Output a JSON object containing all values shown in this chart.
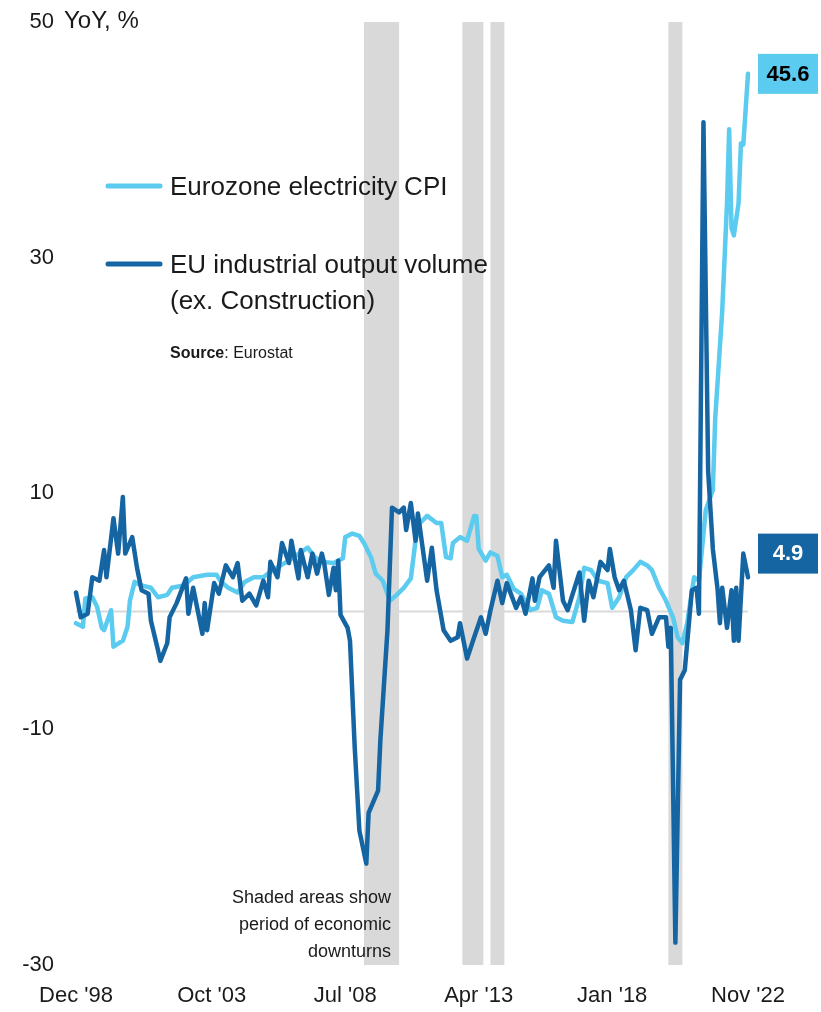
{
  "chart_data": {
    "type": "line",
    "ylabel": "YoY, %",
    "ylim": [
      -30,
      50
    ],
    "yticks": [
      -30,
      -10,
      10,
      30,
      50
    ],
    "xlim": [
      "1998-12",
      "2022-11"
    ],
    "xticks": [
      {
        "value": "1998-12",
        "label": "Dec '98"
      },
      {
        "value": "2003-10",
        "label": "Oct '03"
      },
      {
        "value": "2008-07",
        "label": "Jul '08"
      },
      {
        "value": "2013-04",
        "label": "Apr '13"
      },
      {
        "value": "2018-01",
        "label": "Jan '18"
      },
      {
        "value": "2022-11",
        "label": "Nov '22"
      }
    ],
    "grid": false,
    "legend": "top left",
    "line_style": "solid",
    "marker": "none",
    "series": [
      {
        "name": "Eurozone electricity CPI",
        "color": "#5bcbef",
        "x": [
          "1998-12",
          "1999-03",
          "1999-04",
          "1999-07",
          "1999-09",
          "1999-11",
          "1999-12",
          "2000-03",
          "2000-04",
          "2000-07",
          "2000-08",
          "2000-10",
          "2000-11",
          "2001-01",
          "2001-04",
          "2001-08",
          "2001-11",
          "2002-03",
          "2002-05",
          "2002-10",
          "2003-02",
          "2003-08",
          "2003-12",
          "2004-02",
          "2004-05",
          "2004-09",
          "2004-12",
          "2005-04",
          "2005-08",
          "2005-12",
          "2006-06",
          "2006-12",
          "2007-03",
          "2007-06",
          "2007-09",
          "2008-02",
          "2008-06",
          "2008-07",
          "2008-10",
          "2009-01",
          "2009-03",
          "2009-06",
          "2009-08",
          "2009-11",
          "2010-02",
          "2010-05",
          "2010-08",
          "2010-11",
          "2011-01",
          "2011-03",
          "2011-06",
          "2011-10",
          "2011-12",
          "2012-02",
          "2012-04",
          "2012-05",
          "2012-08",
          "2012-11",
          "2013-02",
          "2013-03",
          "2013-04",
          "2013-07",
          "2013-09",
          "2013-12",
          "2014-02",
          "2014-04",
          "2014-07",
          "2014-10",
          "2015-02",
          "2015-05",
          "2015-07",
          "2015-10",
          "2016-01",
          "2016-04",
          "2016-08",
          "2016-11",
          "2017-01",
          "2017-04",
          "2017-07",
          "2017-11",
          "2018-01",
          "2018-04",
          "2018-07",
          "2018-10",
          "2019-01",
          "2019-04",
          "2019-06",
          "2019-09",
          "2019-12",
          "2020-03",
          "2020-05",
          "2020-07",
          "2020-09",
          "2020-12",
          "2021-02",
          "2021-05",
          "2021-08",
          "2021-09",
          "2021-12",
          "2022-02",
          "2022-03",
          "2022-04",
          "2022-05",
          "2022-07",
          "2022-08",
          "2022-09",
          "2022-11"
        ],
        "values": [
          -1.0,
          -1.3,
          1.1,
          1.2,
          0.4,
          -1.4,
          -1.6,
          0.1,
          -3.0,
          -2.6,
          -2.5,
          -1.3,
          0.9,
          2.5,
          2.2,
          2.0,
          1.2,
          1.4,
          2.0,
          2.2,
          2.9,
          3.1,
          3.1,
          2.5,
          2.0,
          1.6,
          2.5,
          2.9,
          2.9,
          3.5,
          4.2,
          5.0,
          5.4,
          4.6,
          4.2,
          4.1,
          4.5,
          6.3,
          6.6,
          6.4,
          5.8,
          4.6,
          3.2,
          2.6,
          0.9,
          1.4,
          2.0,
          2.8,
          6.0,
          7.5,
          8.1,
          7.5,
          7.5,
          4.6,
          4.5,
          5.8,
          6.3,
          6.0,
          8.1,
          8.1,
          5.3,
          4.3,
          5.0,
          4.7,
          2.9,
          3.1,
          1.9,
          1.5,
          0.1,
          0.3,
          1.8,
          1.5,
          -0.5,
          -0.8,
          -0.9,
          1.2,
          3.7,
          3.5,
          2.6,
          2.4,
          0.3,
          1.2,
          2.9,
          3.5,
          4.2,
          3.9,
          3.5,
          2.0,
          0.9,
          -0.5,
          -2.2,
          -2.7,
          -1.0,
          2.9,
          2.6,
          8.6,
          10.3,
          16.4,
          25.5,
          34.6,
          40.9,
          32.5,
          31.9,
          34.6,
          39.7,
          39.6,
          45.6
        ]
      },
      {
        "name": "EU industrial output volume (ex. Construction)",
        "color": "#1565a3",
        "x": [
          "1998-12",
          "1999-02",
          "1999-05",
          "1999-07",
          "1999-10",
          "1999-12",
          "2000-01",
          "2000-04",
          "2000-06",
          "2000-08",
          "2000-09",
          "2000-12",
          "2001-02",
          "2001-04",
          "2001-07",
          "2001-08",
          "2001-11",
          "2001-12",
          "2002-03",
          "2002-04",
          "2002-07",
          "2002-11",
          "2002-12",
          "2003-02",
          "2003-06",
          "2003-07",
          "2003-08",
          "2003-11",
          "2004-01",
          "2004-04",
          "2004-07",
          "2004-09",
          "2004-11",
          "2005-02",
          "2005-05",
          "2005-08",
          "2005-10",
          "2005-11",
          "2006-02",
          "2006-04",
          "2006-07",
          "2006-08",
          "2006-11",
          "2006-12",
          "2007-03",
          "2007-05",
          "2007-07",
          "2007-09",
          "2007-10",
          "2007-12",
          "2008-02",
          "2008-03",
          "2008-04",
          "2008-05",
          "2008-08",
          "2008-09",
          "2008-11",
          "2009-01",
          "2009-04",
          "2009-05",
          "2009-09",
          "2009-10",
          "2010-01",
          "2010-03",
          "2010-06",
          "2010-08",
          "2010-09",
          "2010-11",
          "2011-01",
          "2011-02",
          "2011-06",
          "2011-08",
          "2011-10",
          "2012-01",
          "2012-04",
          "2012-07",
          "2012-08",
          "2012-11",
          "2013-02",
          "2013-05",
          "2013-07",
          "2013-09",
          "2013-12",
          "2014-02",
          "2014-04",
          "2014-08",
          "2014-10",
          "2014-12",
          "2015-03",
          "2015-04",
          "2015-06",
          "2015-10",
          "2015-12",
          "2016-01",
          "2016-04",
          "2016-06",
          "2016-08",
          "2016-11",
          "2017-01",
          "2017-03",
          "2017-05",
          "2017-08",
          "2017-11",
          "2017-12",
          "2018-02",
          "2018-04",
          "2018-06",
          "2018-09",
          "2018-11",
          "2019-01",
          "2019-04",
          "2019-06",
          "2019-09",
          "2019-12",
          "2020-01",
          "2020-02",
          "2020-04",
          "2020-06",
          "2020-08",
          "2020-11",
          "2021-01",
          "2021-02",
          "2021-04",
          "2021-06",
          "2021-08",
          "2021-10",
          "2021-11",
          "2021-12",
          "2022-02",
          "2022-04",
          "2022-05",
          "2022-06",
          "2022-07",
          "2022-09",
          "2022-11"
        ],
        "values": [
          1.6,
          -0.5,
          -0.2,
          2.9,
          2.6,
          5.2,
          2.9,
          7.9,
          4.9,
          9.7,
          4.9,
          6.3,
          3.7,
          1.8,
          1.5,
          -0.8,
          -3.3,
          -4.2,
          -2.7,
          -0.5,
          0.7,
          2.8,
          -0.2,
          2.0,
          -1.9,
          0.7,
          -1.6,
          2.4,
          1.5,
          3.9,
          2.9,
          4.1,
          0.9,
          1.5,
          0.5,
          2.6,
          1.2,
          4.2,
          2.9,
          5.8,
          4.1,
          6.0,
          2.8,
          5.2,
          2.9,
          4.9,
          3.2,
          4.9,
          4.1,
          1.4,
          3.7,
          1.8,
          4.3,
          -0.3,
          -1.4,
          -2.5,
          -11.5,
          -18.6,
          -21.4,
          -17.1,
          -15.2,
          -10.9,
          -1.6,
          8.8,
          8.4,
          8.8,
          6.9,
          9.2,
          6.0,
          8.3,
          2.6,
          5.4,
          1.8,
          -1.6,
          -2.5,
          -2.2,
          -1.0,
          -4.0,
          -2.2,
          -0.5,
          -1.9,
          0.1,
          2.6,
          0.7,
          2.4,
          0.3,
          1.2,
          -0.2,
          2.8,
          0.9,
          2.9,
          3.9,
          2.0,
          6.0,
          0.9,
          0.1,
          1.4,
          3.3,
          -0.8,
          2.6,
          1.2,
          4.2,
          3.5,
          5.3,
          2.9,
          1.8,
          2.6,
          0.1,
          -3.3,
          0.3,
          0.1,
          -1.9,
          -0.5,
          -0.5,
          -3.0,
          -1.4,
          -28.1,
          -5.8,
          -5.0,
          1.8,
          2.0,
          -0.2,
          41.5,
          11.9,
          5.3,
          1.9,
          -1.0,
          2.0,
          -1.4,
          1.8,
          -2.5,
          2.0,
          -2.5,
          4.9,
          2.9
        ]
      }
    ],
    "ref_lines": [
      {
        "axis": "y",
        "value": 0,
        "color": "#d9d9d9"
      }
    ],
    "bands": [
      {
        "axis": "x",
        "from": "2009-03",
        "to": "2010-06",
        "color": "#d9d9d9"
      },
      {
        "axis": "x",
        "from": "2012-09",
        "to": "2013-06",
        "color": "#d9d9d9"
      },
      {
        "axis": "x",
        "from": "2013-09",
        "to": "2014-03",
        "color": "#d9d9d9"
      },
      {
        "axis": "x",
        "from": "2020-01",
        "to": "2020-07",
        "color": "#d9d9d9"
      }
    ],
    "annotations": [
      "Source: Eurostat",
      "Shaded areas show period of  economic downturns",
      {
        "text": "45.6",
        "x": "2022-11",
        "y": 45.6
      },
      {
        "text": "4.9",
        "x": "2022-09",
        "y": 4.9
      }
    ]
  }
}
